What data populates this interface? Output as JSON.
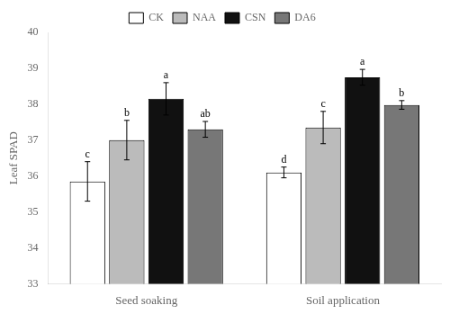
{
  "chart_data": {
    "type": "bar",
    "categories": [
      "Seed soaking",
      "Soil application"
    ],
    "series": [
      {
        "name": "CK",
        "color": "#ffffff",
        "values": [
          35.85,
          36.1
        ],
        "errors": [
          0.55,
          0.15
        ],
        "letters": [
          "c",
          "d"
        ]
      },
      {
        "name": "NAA",
        "color": "#bbbbbb",
        "values": [
          37.0,
          37.35
        ],
        "errors": [
          0.55,
          0.45
        ],
        "letters": [
          "b",
          "c"
        ]
      },
      {
        "name": "CSN",
        "color": "#111111",
        "values": [
          38.15,
          38.75
        ],
        "errors": [
          0.45,
          0.22
        ],
        "letters": [
          "a",
          "a"
        ]
      },
      {
        "name": "DA6",
        "color": "#777777",
        "values": [
          37.3,
          37.98
        ],
        "errors": [
          0.22,
          0.12
        ],
        "letters": [
          "ab",
          "b"
        ]
      }
    ],
    "ylabel": "Leaf SPAD",
    "ylim": [
      33,
      40
    ],
    "yticks": [
      33,
      34,
      35,
      36,
      37,
      38,
      39,
      40
    ],
    "grid": false,
    "legend": "top"
  }
}
